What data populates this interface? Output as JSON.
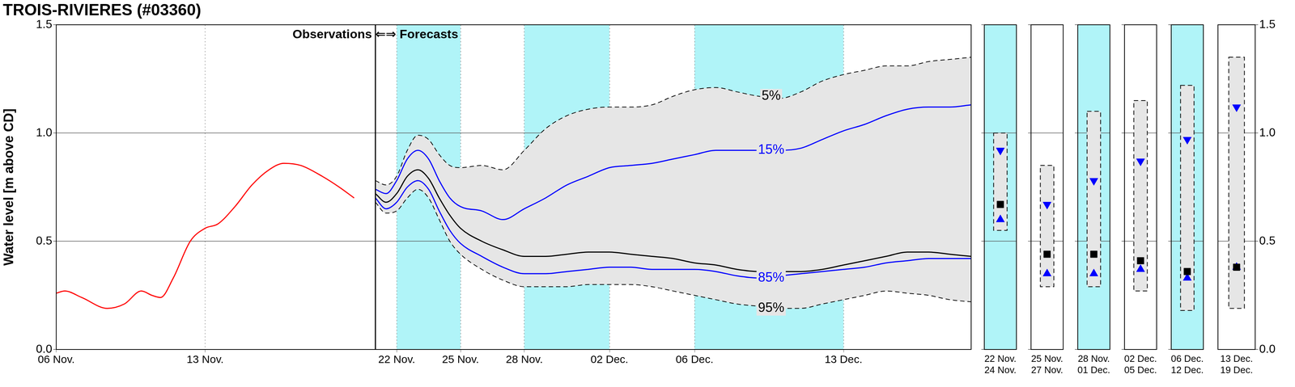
{
  "chart_data": [
    {
      "type": "line",
      "title": "TROIS-RIVIERES (#03360)",
      "ylabel": "Water level [m above CD]",
      "xlim": [
        6,
        49
      ],
      "xticks": [
        {
          "value": 6,
          "label": "06 Nov."
        },
        {
          "value": 13,
          "label": "13 Nov."
        },
        {
          "value": 22,
          "label": "22 Nov."
        },
        {
          "value": 25,
          "label": "25 Nov."
        },
        {
          "value": 28,
          "label": "28 Nov."
        },
        {
          "value": 32,
          "label": "02 Dec."
        },
        {
          "value": 36,
          "label": "06 Dec."
        },
        {
          "value": 43,
          "label": "13 Dec."
        }
      ],
      "ylim": [
        0,
        1.5
      ],
      "yticks": [
        {
          "value": 0,
          "label": "0.0"
        },
        0.5,
        {
          "value": 1,
          "label": "1.0"
        },
        1.5
      ],
      "grid": true,
      "divider": {
        "x": 21,
        "label": "Observations ⇐⇒ Forecasts"
      },
      "shaded_ranges": [
        [
          22,
          25
        ],
        [
          28,
          32
        ],
        [
          36,
          43
        ]
      ],
      "series": [
        {
          "color": "#ff0000",
          "line_style": "solid",
          "x": [
            6,
            6.4,
            7.2,
            8.4,
            9.2,
            10,
            10.5,
            10.9,
            11.5,
            12.3,
            13,
            13.6,
            14.4,
            15.2,
            16,
            16.7,
            17.5,
            18.5,
            19.3,
            20
          ],
          "values": [
            0.26,
            0.27,
            0.24,
            0.19,
            0.21,
            0.27,
            0.25,
            0.24,
            0.33,
            0.5,
            0.56,
            0.58,
            0.66,
            0.76,
            0.83,
            0.86,
            0.85,
            0.8,
            0.75,
            0.7
          ]
        },
        {
          "name": "5%",
          "color": "#000000",
          "line_style": "dashed",
          "fill_to": "95%",
          "x": [
            21,
            21.5,
            22,
            22.5,
            23,
            23.5,
            24,
            24.5,
            25,
            26,
            27,
            28,
            29,
            30,
            31,
            32,
            33,
            34,
            35,
            36,
            37,
            38,
            39,
            40,
            41,
            42,
            43,
            44,
            45,
            46,
            47,
            48,
            49
          ],
          "values": [
            0.78,
            0.76,
            0.8,
            0.92,
            0.99,
            0.97,
            0.9,
            0.85,
            0.84,
            0.85,
            0.83,
            0.92,
            1.02,
            1.08,
            1.11,
            1.12,
            1.12,
            1.13,
            1.17,
            1.2,
            1.21,
            1.19,
            1.17,
            1.16,
            1.19,
            1.24,
            1.27,
            1.29,
            1.31,
            1.31,
            1.33,
            1.34,
            1.35
          ]
        },
        {
          "name": "15%",
          "color": "#0000ff",
          "line_style": "solid",
          "x": [
            21,
            21.5,
            22,
            22.5,
            23,
            23.5,
            24,
            24.5,
            25,
            26,
            27,
            28,
            29,
            30,
            31,
            32,
            33,
            34,
            35,
            36,
            37,
            38,
            39,
            40,
            41,
            42,
            43,
            44,
            45,
            46,
            47,
            48,
            49
          ],
          "values": [
            0.74,
            0.72,
            0.78,
            0.88,
            0.92,
            0.88,
            0.78,
            0.7,
            0.66,
            0.64,
            0.6,
            0.65,
            0.7,
            0.76,
            0.8,
            0.84,
            0.85,
            0.86,
            0.88,
            0.9,
            0.92,
            0.92,
            0.92,
            0.92,
            0.93,
            0.97,
            1.01,
            1.04,
            1.08,
            1.11,
            1.12,
            1.12,
            1.13
          ]
        },
        {
          "color": "#000000",
          "line_style": "solid",
          "x": [
            21,
            21.5,
            22,
            22.5,
            23,
            23.5,
            24,
            24.5,
            25,
            26,
            27,
            28,
            29,
            30,
            31,
            32,
            33,
            34,
            35,
            36,
            37,
            38,
            39,
            40,
            41,
            42,
            43,
            44,
            45,
            46,
            47,
            48,
            49
          ],
          "values": [
            0.72,
            0.68,
            0.72,
            0.8,
            0.83,
            0.79,
            0.7,
            0.62,
            0.56,
            0.5,
            0.46,
            0.43,
            0.43,
            0.44,
            0.45,
            0.45,
            0.44,
            0.43,
            0.42,
            0.4,
            0.39,
            0.37,
            0.36,
            0.36,
            0.36,
            0.37,
            0.39,
            0.41,
            0.43,
            0.45,
            0.45,
            0.44,
            0.43
          ]
        },
        {
          "name": "85%",
          "color": "#0000ff",
          "line_style": "solid",
          "x": [
            21,
            21.5,
            22,
            22.5,
            23,
            23.5,
            24,
            24.5,
            25,
            26,
            27,
            28,
            29,
            30,
            31,
            32,
            33,
            34,
            35,
            36,
            37,
            38,
            39,
            40,
            41,
            42,
            43,
            44,
            45,
            46,
            47,
            48,
            49
          ],
          "values": [
            0.7,
            0.65,
            0.68,
            0.75,
            0.78,
            0.74,
            0.64,
            0.55,
            0.49,
            0.43,
            0.38,
            0.35,
            0.35,
            0.36,
            0.37,
            0.38,
            0.38,
            0.37,
            0.37,
            0.37,
            0.36,
            0.34,
            0.33,
            0.34,
            0.35,
            0.36,
            0.37,
            0.38,
            0.4,
            0.41,
            0.42,
            0.42,
            0.42
          ]
        },
        {
          "name": "95%",
          "color": "#000000",
          "line_style": "dashed",
          "x": [
            21,
            21.5,
            22,
            22.5,
            23,
            23.5,
            24,
            24.5,
            25,
            26,
            27,
            28,
            29,
            30,
            31,
            32,
            33,
            34,
            35,
            36,
            37,
            38,
            39,
            40,
            41,
            42,
            43,
            44,
            45,
            46,
            47,
            48,
            49
          ],
          "values": [
            0.68,
            0.63,
            0.64,
            0.7,
            0.74,
            0.7,
            0.6,
            0.5,
            0.44,
            0.37,
            0.32,
            0.29,
            0.29,
            0.29,
            0.3,
            0.3,
            0.3,
            0.29,
            0.27,
            0.25,
            0.23,
            0.21,
            0.2,
            0.19,
            0.19,
            0.21,
            0.23,
            0.25,
            0.27,
            0.26,
            0.25,
            0.23,
            0.22
          ]
        }
      ],
      "annotations": [
        {
          "text": "5%",
          "x": 39.6,
          "y": 1.17
        },
        {
          "text": "15%",
          "x": 39.6,
          "y": 0.92
        },
        {
          "text": "85%",
          "x": 39.6,
          "y": 0.33
        },
        {
          "text": "95%",
          "x": 39.6,
          "y": 0.19
        }
      ]
    },
    {
      "type": "box",
      "categories": [
        [
          "22 Nov.",
          "24 Nov."
        ],
        [
          "25 Nov.",
          "27 Nov."
        ],
        [
          "28 Nov.",
          "01 Dec."
        ],
        [
          "02 Dec.",
          "05 Dec."
        ],
        [
          "06 Dec.",
          "12 Dec."
        ],
        [
          "13 Dec.",
          "19 Dec."
        ]
      ],
      "ylim": [
        0,
        1.5
      ],
      "yticks": [
        {
          "value": 0,
          "label": "0.0"
        },
        0.5,
        {
          "value": 1,
          "label": "1.0"
        },
        1.5
      ],
      "grid": true,
      "series": [
        {
          "name": "5%",
          "color": "#000000",
          "line_style": "dashed",
          "values": [
            1.0,
            0.85,
            1.1,
            1.15,
            1.22,
            1.35
          ]
        },
        {
          "name": "15%",
          "color": "#0000ff",
          "marker": "triangle-down",
          "values": [
            0.92,
            0.67,
            0.78,
            0.87,
            0.97,
            1.12
          ]
        },
        {
          "color": "#000000",
          "marker": "square",
          "values": [
            0.67,
            0.44,
            0.44,
            0.41,
            0.36,
            0.38
          ]
        },
        {
          "name": "85%",
          "color": "#0000ff",
          "marker": "triangle-up",
          "values": [
            0.6,
            0.35,
            0.35,
            0.37,
            0.33,
            0.38
          ]
        },
        {
          "name": "95%",
          "color": "#000000",
          "line_style": "dashed",
          "values": [
            0.55,
            0.29,
            0.29,
            0.27,
            0.18,
            0.19
          ]
        }
      ]
    }
  ]
}
